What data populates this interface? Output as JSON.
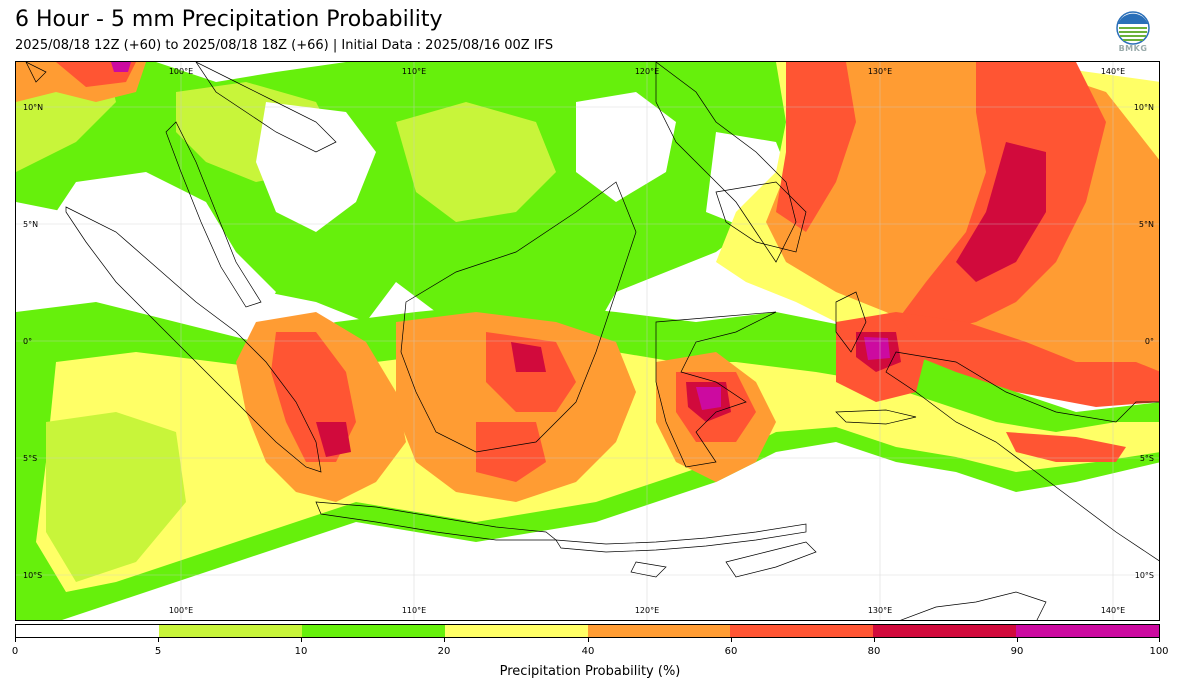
{
  "header": {
    "title": "6 Hour - 5 mm Precipitation Probability",
    "subtitle": "2025/08/18 12Z (+60) to 2025/08/18 18Z (+66) | Initial Data : 2025/08/16 00Z IFS"
  },
  "logo": {
    "text": "BMKG"
  },
  "map": {
    "lon_labels_top": [
      "100°E",
      "110°E",
      "120°E",
      "130°E",
      "140°E"
    ],
    "lon_labels_bottom": [
      "100°E",
      "110°E",
      "120°E",
      "130°E",
      "140°E"
    ],
    "lat_labels_left": [
      "10°N",
      "5°N",
      "0°",
      "5°S",
      "10°S"
    ],
    "lat_labels_right": [
      "10°N",
      "5°N",
      "0°",
      "5°S",
      "10°S"
    ]
  },
  "colorbar": {
    "title": "Precipitation Probability (%)",
    "ticks": [
      "0",
      "5",
      "10",
      "20",
      "40",
      "60",
      "80",
      "90",
      "100"
    ],
    "colors": [
      "#ffffff",
      "#c8f53a",
      "#66f00c",
      "#ffff66",
      "#ff9c33",
      "#ff5533",
      "#d10a3c",
      "#cc0aa0"
    ]
  },
  "palette": {
    "p5": "#c8f53a",
    "p10": "#66f00c",
    "p20": "#ffff66",
    "p40": "#ff9c33",
    "p60": "#ff5533",
    "p80": "#d10a3c",
    "p90": "#cc0aa0"
  }
}
